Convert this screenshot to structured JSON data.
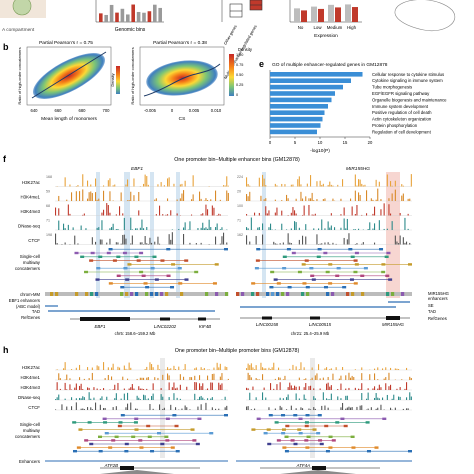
{
  "panel_a": {
    "caption": "A compartment",
    "xlabel": "Genomic bins",
    "cat_other": "Other genes",
    "cat_multi": "Multiple enhancer-regulated genes"
  },
  "panel_top_right": {
    "xlabel": "Expression",
    "categories": [
      "No",
      "Low",
      "Medium",
      "High"
    ],
    "values": [
      0.62,
      0.7,
      0.78,
      0.8
    ]
  },
  "panel_b": {
    "letter": "b",
    "left": {
      "title": "Partial Pearson's r = 0.75",
      "xlabel": "Mean length of monomers",
      "ylabel": "Ratio of high-order concatemers",
      "xticks": [
        "640",
        "660",
        "680",
        "700"
      ]
    },
    "right": {
      "title": "Partial Pearson's r = 0.38",
      "xlabel": "CS",
      "ylabel": "Ratio of high-order concatemers",
      "xticks": [
        "-0.005",
        "0",
        "0.005",
        "0.010"
      ]
    },
    "legend_title": "Density",
    "legend_ticks": [
      "1.00",
      "0.75",
      "0.50",
      "0.25",
      "0"
    ]
  },
  "panel_e": {
    "letter": "e",
    "title": "GO of multiple enhancer-regulated genes in GM12878",
    "xlabel": "-log10(P)",
    "xticks": [
      "0",
      "5",
      "10",
      "15",
      "20"
    ],
    "terms": [
      "Cellular response to cytokine stimulus",
      "Cytokine signaling in immune system",
      "Tube morphogenesis",
      "EGF/EGFR signaling pathway",
      "Organelle biogenesis and maintenance",
      "Immune system development",
      "Positive regulation of cell death",
      "Actin cytoskeleton organization",
      "Protein phosphorylation",
      "Regulation of cell development"
    ],
    "values": [
      18.5,
      16.2,
      14.6,
      13.0,
      12.3,
      11.6,
      10.9,
      10.5,
      10.1,
      9.4
    ]
  },
  "panel_f": {
    "letter": "f",
    "title": "One promoter bin–Multiple enhancer bins (GM12878)",
    "gene_left": "EBF1",
    "gene_right": "MIR155HG",
    "tracks": [
      "H3K27ac",
      "H3K4me1",
      "H3K4me3",
      "DNase-seq",
      "CTCF"
    ],
    "vals_left": [
      "168",
      "59",
      "68",
      "71",
      "198"
    ],
    "vals_right": [
      "224",
      "20",
      "100",
      "71",
      "162"
    ],
    "single_cell": "Single-cell multiway concatemers",
    "enh_left": "chrom-MM EBF1 enhancers (ABC model)",
    "enh_right": "MIR155HG enhancers",
    "lbl_se": "SE",
    "lbl_tad": "TAD",
    "lbl_ref": "RefGenes",
    "genes_left": [
      "EBF1",
      "LINC02202",
      "KIF4B"
    ],
    "genes_right": [
      "LINC00158",
      "MIR155HG",
      "LINC00515"
    ],
    "coord_left": "chr5: 158.6–159.2 Mb",
    "coord_right": "chr21: 25.4–25.9 Mb"
  },
  "panel_h": {
    "letter": "h",
    "title": "One promoter bin–Multiple promoter bins (GM12878)",
    "tracks": [
      "H3K27ac",
      "H3K4me1",
      "H3K4me3",
      "DNase-seq",
      "CTCF"
    ],
    "single_cell": "Single-cell multiway concatemers",
    "enhancers": "Enhancers",
    "gene_left": "ATF2B",
    "gene_right": "ATF4A"
  },
  "colors": {
    "h3k27ac": "#e8a33c",
    "h3k4me1": "#d98a2a",
    "h3k4me3": "#c0392b",
    "dnase": "#2c8a8a",
    "ctcf": "#555555",
    "bar_blue": "#3a8ed6",
    "red": "#c0392b",
    "highlight_blue": "#b9d3ea",
    "highlight_red": "#f3c4bd"
  }
}
